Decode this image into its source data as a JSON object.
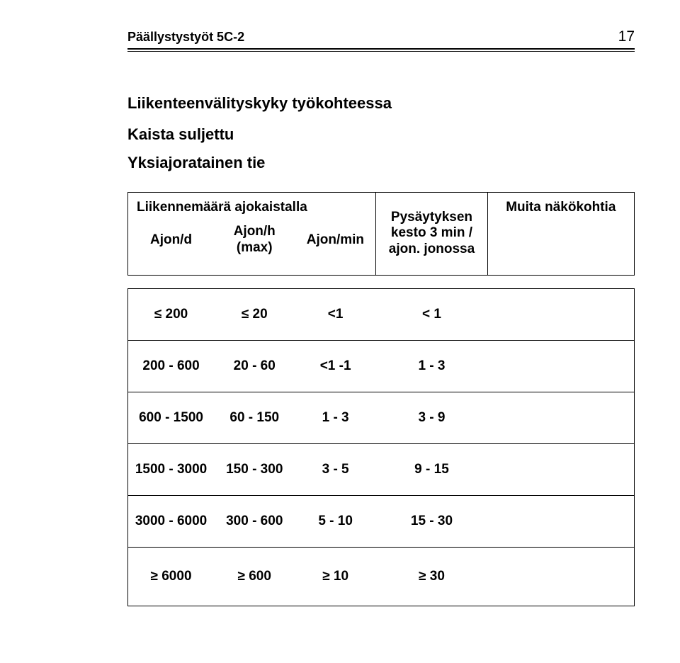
{
  "doc": {
    "header_title": "Päällystystyöt 5C-2",
    "page_number": "17"
  },
  "section": {
    "title": "Liikenteenvälityskyky työkohteessa",
    "sub1": "Kaista suljettu",
    "sub2": "Yksiajoratainen tie"
  },
  "table": {
    "header": {
      "liikennemaara": "Liikennemäärä ajokaistalla",
      "ajon_d": "Ajon/d",
      "ajon_h_line1": "Ajon/h",
      "ajon_h_line2": "(max)",
      "ajon_min": "Ajon/min",
      "pys_line1": "Pysäytyksen",
      "pys_line2": "kesto 3 min /",
      "pys_line3": "ajon. jonossa",
      "muita": "Muita näkökohtia"
    },
    "col_widths": [
      "17%",
      "16%",
      "16%",
      "22%",
      "29%"
    ],
    "rows": [
      {
        "c1": "≤ 200",
        "c2": "≤ 20",
        "c3": "<1",
        "c4": "< 1",
        "c5": ""
      },
      {
        "c1": "200 - 600",
        "c2": "20 - 60",
        "c3": "<1 -1",
        "c4": "1 - 3",
        "c5": ""
      },
      {
        "c1": "600 - 1500",
        "c2": "60 - 150",
        "c3": "1 - 3",
        "c4": "3 - 9",
        "c5": ""
      },
      {
        "c1": "1500 - 3000",
        "c2": "150 - 300",
        "c3": "3 - 5",
        "c4": "9 - 15",
        "c5": ""
      },
      {
        "c1": "3000 - 6000",
        "c2": "300 - 600",
        "c3": "5 - 10",
        "c4": "15 - 30",
        "c5": ""
      },
      {
        "c1": "≥ 6000",
        "c2": "≥ 600",
        "c3": "≥ 10",
        "c4": "≥ 30",
        "c5": ""
      }
    ]
  },
  "style": {
    "text_color": "#000000",
    "background_color": "#ffffff",
    "border_color": "#000000",
    "font_family": "Arial",
    "header_fontsize_pt": 14,
    "body_fontsize_pt": 14
  }
}
